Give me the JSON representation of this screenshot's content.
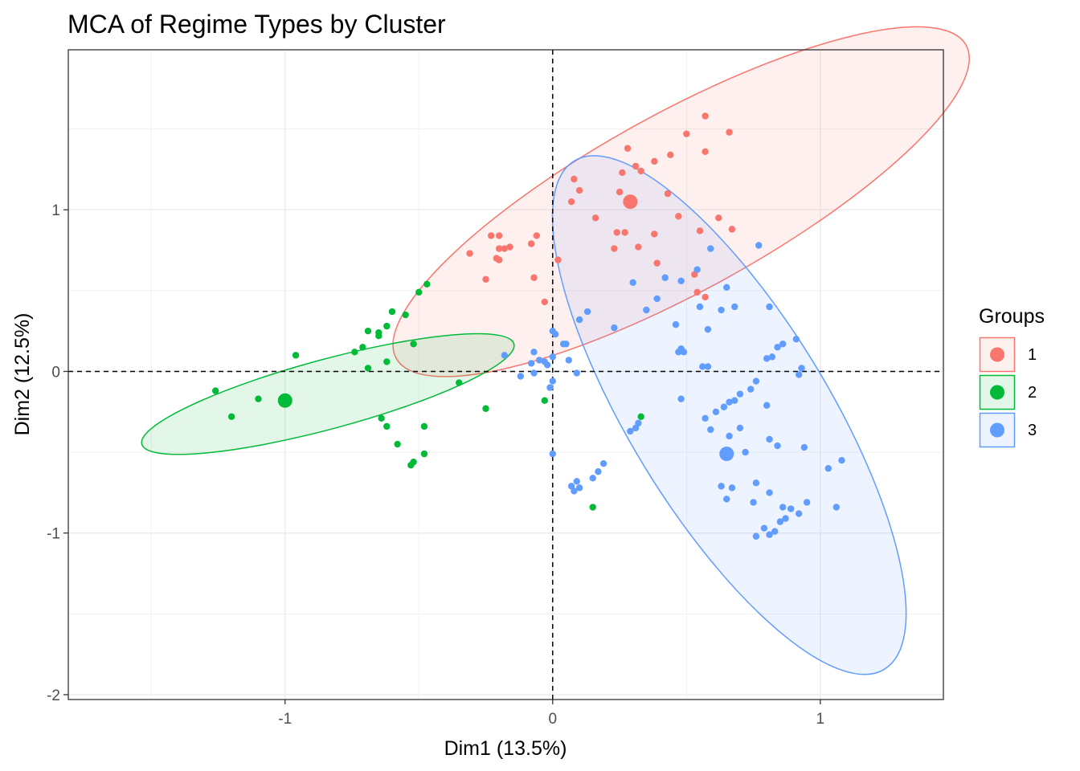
{
  "chart_data": {
    "type": "scatter",
    "title": "MCA of Regime Types by Cluster",
    "xlabel": "Dim1 (13.5%)",
    "ylabel": "Dim2 (12.5%)",
    "xlim": [
      -1.81,
      1.46
    ],
    "ylim": [
      -2.03,
      1.99
    ],
    "x_ticks": [
      -1,
      0,
      1
    ],
    "x_tick_labels": [
      "-1",
      "0",
      "1"
    ],
    "y_ticks": [
      -2,
      -1,
      0,
      1
    ],
    "y_tick_labels": [
      "-2",
      "-1",
      "0",
      "1"
    ],
    "grid": true,
    "reference_lines": {
      "x": 0,
      "y": 0,
      "style": "dashed"
    },
    "legend": {
      "title": "Groups",
      "position": "right"
    },
    "series": [
      {
        "name": "1",
        "color": "#F8766D",
        "centroid": [
          0.29,
          1.05
        ],
        "ellipse": {
          "center": [
            0.48,
            1.05
          ],
          "rx": 1.215,
          "ry": 0.55,
          "angle_deg": 28.8
        },
        "points": [
          [
            -0.31,
            0.73
          ],
          [
            -0.23,
            0.84
          ],
          [
            -0.2,
            0.84
          ],
          [
            -0.2,
            0.76
          ],
          [
            -0.18,
            0.76
          ],
          [
            -0.16,
            0.77
          ],
          [
            -0.21,
            0.7
          ],
          [
            -0.2,
            0.69
          ],
          [
            -0.25,
            0.57
          ],
          [
            -0.08,
            0.79
          ],
          [
            -0.06,
            0.84
          ],
          [
            -0.07,
            0.58
          ],
          [
            -0.03,
            0.43
          ],
          [
            0.02,
            0.69
          ],
          [
            0.07,
            1.05
          ],
          [
            0.1,
            1.12
          ],
          [
            0.08,
            1.19
          ],
          [
            0.16,
            0.95
          ],
          [
            0.25,
            1.11
          ],
          [
            0.26,
            1.23
          ],
          [
            0.28,
            1.38
          ],
          [
            0.31,
            1.27
          ],
          [
            0.33,
            1.24
          ],
          [
            0.38,
            1.3
          ],
          [
            0.44,
            1.34
          ],
          [
            0.5,
            1.47
          ],
          [
            0.57,
            1.58
          ],
          [
            0.57,
            1.36
          ],
          [
            0.66,
            1.48
          ],
          [
            0.43,
            1.1
          ],
          [
            0.47,
            0.96
          ],
          [
            0.27,
            0.86
          ],
          [
            0.24,
            0.86
          ],
          [
            0.23,
            0.76
          ],
          [
            0.32,
            0.77
          ],
          [
            0.38,
            0.85
          ],
          [
            0.55,
            0.87
          ],
          [
            0.67,
            0.88
          ],
          [
            0.62,
            0.95
          ],
          [
            0.39,
            0.67
          ],
          [
            0.53,
            0.6
          ],
          [
            0.54,
            0.49
          ],
          [
            0.57,
            0.46
          ]
        ]
      },
      {
        "name": "2",
        "color": "#00BA38",
        "centroid": [
          -1.0,
          -0.18
        ],
        "ellipse": {
          "center": [
            -0.84,
            -0.14
          ],
          "rx": 0.72,
          "ry": 0.215,
          "angle_deg": 15.1
        },
        "points": [
          [
            -1.26,
            -0.12
          ],
          [
            -1.2,
            -0.28
          ],
          [
            -1.1,
            -0.17
          ],
          [
            -0.96,
            0.1
          ],
          [
            -0.74,
            0.12
          ],
          [
            -0.71,
            0.15
          ],
          [
            -0.69,
            0.25
          ],
          [
            -0.65,
            0.24
          ],
          [
            -0.65,
            0.22
          ],
          [
            -0.62,
            0.28
          ],
          [
            -0.62,
            0.06
          ],
          [
            -0.69,
            0.02
          ],
          [
            -0.6,
            0.37
          ],
          [
            -0.55,
            0.35
          ],
          [
            -0.5,
            0.49
          ],
          [
            -0.47,
            0.54
          ],
          [
            -0.52,
            0.17
          ],
          [
            -0.64,
            -0.29
          ],
          [
            -0.62,
            -0.34
          ],
          [
            -0.58,
            -0.45
          ],
          [
            -0.48,
            -0.34
          ],
          [
            -0.48,
            -0.51
          ],
          [
            -0.52,
            -0.56
          ],
          [
            -0.53,
            -0.58
          ],
          [
            -0.35,
            -0.07
          ],
          [
            -0.25,
            -0.23
          ],
          [
            -0.03,
            -0.18
          ],
          [
            0.33,
            -0.28
          ],
          [
            0.15,
            -0.84
          ]
        ]
      },
      {
        "name": "3",
        "color": "#619CFF",
        "centroid": [
          0.65,
          -0.51
        ],
        "ellipse": {
          "center": [
            0.66,
            -0.27
          ],
          "rx": 1.113,
          "ry": 0.614,
          "angle_deg": -58.6
        },
        "points": [
          [
            0.0,
            0.25
          ],
          [
            0.01,
            0.23
          ],
          [
            0.05,
            0.17
          ],
          [
            0.1,
            0.32
          ],
          [
            0.13,
            0.37
          ],
          [
            0.23,
            0.27
          ],
          [
            0.3,
            0.55
          ],
          [
            0.35,
            0.38
          ],
          [
            0.39,
            0.45
          ],
          [
            0.42,
            0.58
          ],
          [
            0.48,
            0.56
          ],
          [
            0.54,
            0.63
          ],
          [
            0.59,
            0.76
          ],
          [
            0.46,
            0.29
          ],
          [
            0.48,
            0.14
          ],
          [
            0.49,
            0.12
          ],
          [
            0.55,
            0.4
          ],
          [
            0.58,
            0.26
          ],
          [
            0.63,
            0.38
          ],
          [
            0.65,
            0.52
          ],
          [
            0.68,
            0.4
          ],
          [
            0.77,
            0.78
          ],
          [
            0.81,
            0.4
          ],
          [
            0.56,
            0.03
          ],
          [
            0.58,
            0.03
          ],
          [
            0.47,
            0.12
          ],
          [
            0.48,
            0.14
          ],
          [
            0.8,
            0.08
          ],
          [
            0.82,
            0.09
          ],
          [
            0.84,
            0.15
          ],
          [
            0.86,
            0.17
          ],
          [
            0.91,
            0.2
          ],
          [
            0.92,
            -0.02
          ],
          [
            0.93,
            0.02
          ],
          [
            0.76,
            -0.06
          ],
          [
            0.74,
            -0.11
          ],
          [
            0.7,
            -0.14
          ],
          [
            0.68,
            -0.18
          ],
          [
            0.66,
            -0.19
          ],
          [
            0.64,
            -0.22
          ],
          [
            0.61,
            -0.25
          ],
          [
            0.57,
            -0.29
          ],
          [
            0.59,
            -0.36
          ],
          [
            0.66,
            -0.4
          ],
          [
            0.7,
            -0.35
          ],
          [
            0.72,
            -0.5
          ],
          [
            0.8,
            -0.21
          ],
          [
            0.81,
            -0.42
          ],
          [
            0.84,
            -0.46
          ],
          [
            0.76,
            -0.69
          ],
          [
            0.81,
            -0.75
          ],
          [
            0.86,
            -0.84
          ],
          [
            0.89,
            -0.85
          ],
          [
            0.92,
            -0.88
          ],
          [
            0.95,
            -0.81
          ],
          [
            0.76,
            -1.02
          ],
          [
            0.79,
            -0.97
          ],
          [
            0.81,
            -1.01
          ],
          [
            0.83,
            -0.99
          ],
          [
            0.85,
            -0.93
          ],
          [
            0.87,
            -0.91
          ],
          [
            1.06,
            -0.84
          ],
          [
            1.03,
            -0.6
          ],
          [
            1.08,
            -0.55
          ],
          [
            0.63,
            -0.71
          ],
          [
            0.65,
            -0.79
          ],
          [
            0.67,
            -0.72
          ],
          [
            0.75,
            -0.81
          ],
          [
            0.94,
            -0.47
          ],
          [
            0.48,
            -0.17
          ],
          [
            0.32,
            -0.32
          ],
          [
            0.31,
            -0.35
          ],
          [
            0.29,
            -0.37
          ],
          [
            0.19,
            -0.57
          ],
          [
            0.17,
            -0.62
          ],
          [
            0.15,
            -0.66
          ],
          [
            0.1,
            -0.72
          ],
          [
            0.08,
            -0.74
          ],
          [
            0.09,
            -0.68
          ],
          [
            0.07,
            -0.71
          ],
          [
            0.04,
            0.17
          ],
          [
            0.06,
            0.07
          ],
          [
            0.09,
            -0.01
          ],
          [
            0.0,
            -0.06
          ],
          [
            -0.01,
            -0.1
          ],
          [
            0.0,
            0.09
          ],
          [
            -0.02,
            0.04
          ],
          [
            -0.03,
            0.06
          ],
          [
            -0.05,
            0.07
          ],
          [
            -0.07,
            0.12
          ],
          [
            -0.08,
            0.05
          ],
          [
            -0.12,
            -0.03
          ],
          [
            -0.18,
            0.1
          ],
          [
            -0.07,
            -0.01
          ],
          [
            0.0,
            -0.51
          ]
        ]
      }
    ]
  }
}
